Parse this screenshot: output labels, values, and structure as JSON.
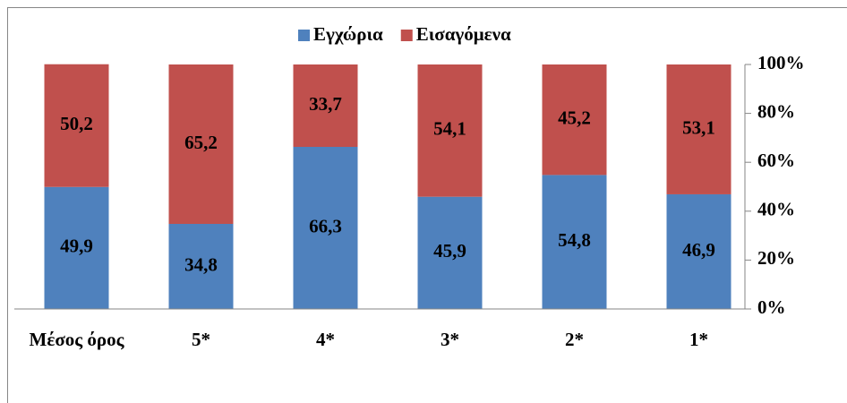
{
  "chart_data": {
    "type": "stacked_bar",
    "categories": [
      "Μέσος όρος",
      "5*",
      "4*",
      "3*",
      "2*",
      "1*"
    ],
    "series": [
      {
        "name": "Εγχώρια",
        "color": "#4f81bd",
        "values": [
          49.9,
          34.8,
          66.3,
          45.9,
          54.8,
          46.9
        ],
        "value_labels": [
          "49,9",
          "34,8",
          "66,3",
          "45,9",
          "54,8",
          "46,9"
        ]
      },
      {
        "name": "Εισαγόμενα",
        "color": "#c0504d",
        "values": [
          50.2,
          65.2,
          33.7,
          54.1,
          45.2,
          53.1
        ],
        "value_labels": [
          "50,2",
          "65,2",
          "33,7",
          "54,1",
          "45,2",
          "53,1"
        ]
      }
    ],
    "ylim": [
      0,
      100
    ],
    "yticks": [
      {
        "value": 0,
        "label": "0%"
      },
      {
        "value": 20,
        "label": "20%"
      },
      {
        "value": 40,
        "label": "40%"
      },
      {
        "value": 60,
        "label": "60%"
      },
      {
        "value": 80,
        "label": "80%"
      },
      {
        "value": 100,
        "label": "100%"
      }
    ],
    "legend": "top"
  }
}
